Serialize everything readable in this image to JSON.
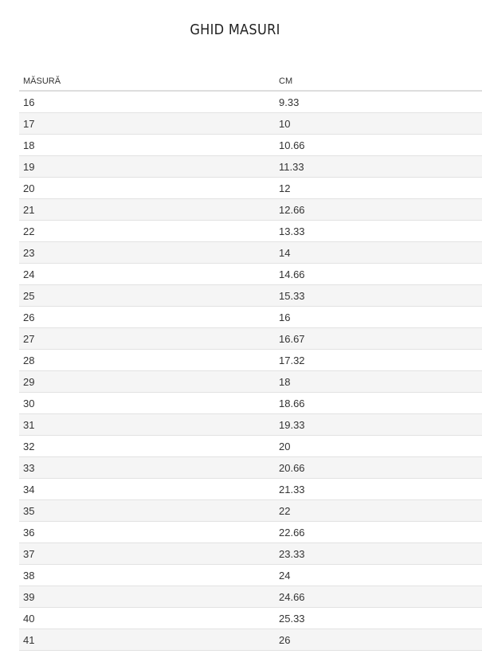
{
  "title": "GHID MASURI",
  "table": {
    "headers": [
      "MĂSURĂ",
      "CM"
    ],
    "rows": [
      [
        "16",
        "9.33"
      ],
      [
        "17",
        "10"
      ],
      [
        "18",
        "10.66"
      ],
      [
        "19",
        "11.33"
      ],
      [
        "20",
        "12"
      ],
      [
        "21",
        "12.66"
      ],
      [
        "22",
        "13.33"
      ],
      [
        "23",
        "14"
      ],
      [
        "24",
        "14.66"
      ],
      [
        "25",
        "15.33"
      ],
      [
        "26",
        "16"
      ],
      [
        "27",
        "16.67"
      ],
      [
        "28",
        "17.32"
      ],
      [
        "29",
        "18"
      ],
      [
        "30",
        "18.66"
      ],
      [
        "31",
        "19.33"
      ],
      [
        "32",
        "20"
      ],
      [
        "33",
        "20.66"
      ],
      [
        "34",
        "21.33"
      ],
      [
        "35",
        "22"
      ],
      [
        "36",
        "22.66"
      ],
      [
        "37",
        "23.33"
      ],
      [
        "38",
        "24"
      ],
      [
        "39",
        "24.66"
      ],
      [
        "40",
        "25.33"
      ],
      [
        "41",
        "26"
      ]
    ]
  }
}
